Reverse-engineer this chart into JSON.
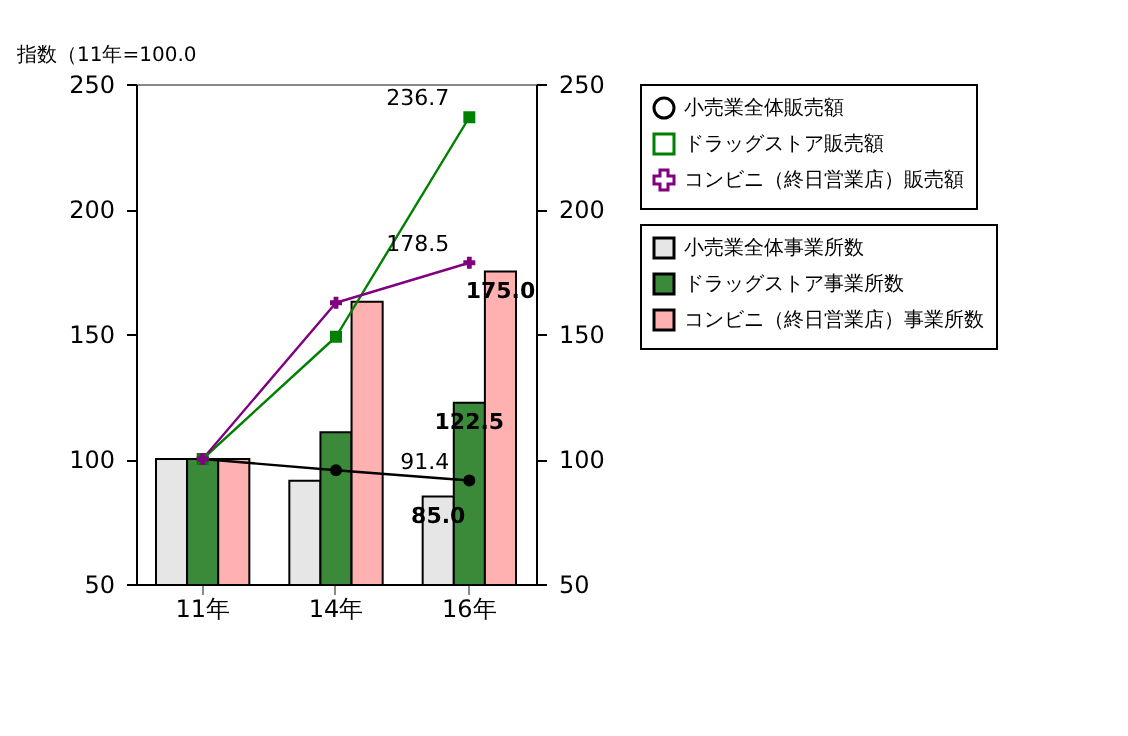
{
  "chart_data": {
    "type": "bar",
    "ylabel": "指数（11年=100.0",
    "categories": [
      "11年",
      "14年",
      "16年"
    ],
    "series": [
      {
        "name": "小売業全体事業所数",
        "color": "#e6e6e6",
        "values": [
          100,
          91.3,
          85.0
        ],
        "value_labels": [
          null,
          null,
          "85.0"
        ]
      },
      {
        "name": "ドラッグストア事業所数",
        "color": "#3a8a3a",
        "values": [
          100,
          110.7,
          122.5
        ],
        "value_labels": [
          null,
          null,
          "122.5"
        ]
      },
      {
        "name": "コンビニ（終日営業店）事業所数",
        "color": "#ffb0b0",
        "values": [
          100,
          162.9,
          175.0
        ],
        "value_labels": [
          null,
          null,
          "175.0"
        ]
      },
      {
        "name": "小売業全体販売額",
        "type": "line",
        "axis": "y2",
        "color": "#000000",
        "marker": "circle",
        "values": [
          100,
          95.5,
          91.4
        ],
        "value_labels": [
          null,
          null,
          "91.4"
        ]
      },
      {
        "name": "ドラッグストア販売額",
        "type": "line",
        "axis": "y2",
        "color": "#008000",
        "marker": "square",
        "values": [
          100,
          148.9,
          236.7
        ],
        "value_labels": [
          null,
          null,
          "236.7"
        ]
      },
      {
        "name": "コンビニ（終日営業店）販売額",
        "type": "line",
        "axis": "y2",
        "color": "#800080",
        "marker": "cross",
        "values": [
          100,
          162.5,
          178.5
        ],
        "value_labels": [
          null,
          null,
          "178.5"
        ]
      }
    ],
    "ylim": [
      50,
      250
    ],
    "yticks": [
      50,
      100,
      150,
      200,
      250
    ],
    "y2lim": [
      50,
      250
    ],
    "y2ticks": [
      50,
      100,
      150,
      200,
      250
    ],
    "grid": false,
    "legend": "right"
  }
}
